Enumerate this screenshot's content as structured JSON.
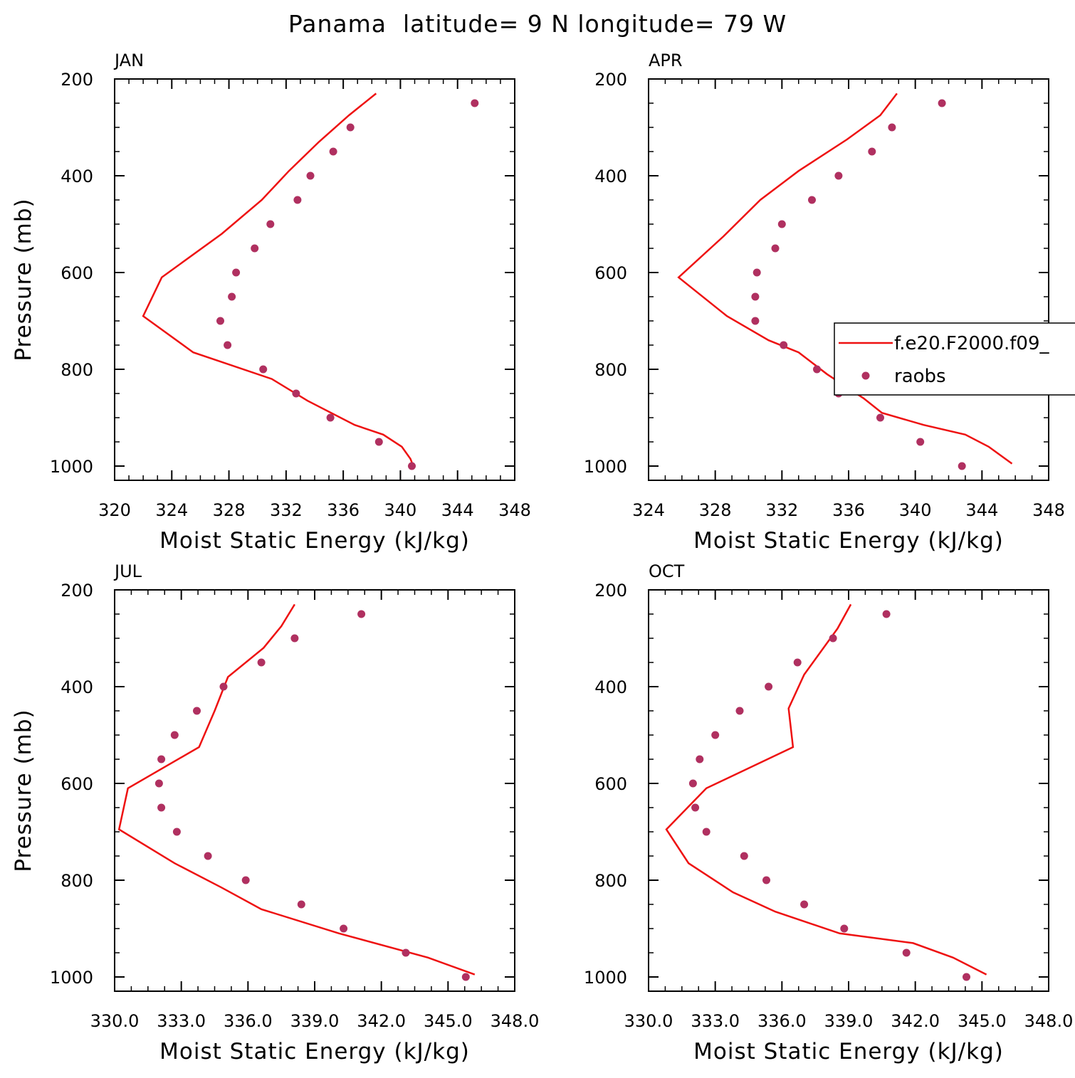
{
  "figure": {
    "title": "Panama  latitude= 9 N longitude= 79 W"
  },
  "colors": {
    "model_line": "#ee1111",
    "obs_marker": "#b03060",
    "axes": "#000000"
  },
  "legend": {
    "entries": [
      {
        "label": "f.e20.F2000.f09_",
        "kind": "line"
      },
      {
        "label": "raobs",
        "kind": "marker"
      }
    ],
    "panel": 1,
    "placement": "center-right"
  },
  "chart_data": [
    {
      "type": "line",
      "title": "JAN",
      "xlabel": "Moist Static Energy (kJ/kg)",
      "ylabel": "Pressure (mb)",
      "xlim": [
        320,
        348
      ],
      "ylim": [
        200,
        1000
      ],
      "x_ticks": [
        "320",
        "324",
        "328",
        "332",
        "336",
        "340",
        "344",
        "348"
      ],
      "y_ticks": [
        "200",
        "400",
        "600",
        "800",
        "1000"
      ],
      "series": [
        {
          "name": "f.e20.F2000.f09_",
          "style": "line",
          "pressure": [
            230,
            275,
            330,
            390,
            450,
            520,
            610,
            690,
            765,
            820,
            865,
            915,
            935,
            960,
            985,
            1000
          ],
          "mse": [
            338.3,
            336.4,
            334.3,
            332.2,
            330.3,
            327.5,
            323.3,
            322.0,
            325.5,
            331.0,
            333.5,
            336.8,
            338.8,
            340.1,
            340.7,
            340.9
          ]
        },
        {
          "name": "raobs",
          "style": "marker",
          "pressure": [
            250,
            300,
            350,
            400,
            450,
            500,
            550,
            600,
            650,
            700,
            750,
            800,
            850,
            900,
            950,
            1000
          ],
          "mse": [
            345.2,
            336.5,
            335.3,
            333.7,
            332.8,
            330.9,
            329.8,
            328.5,
            328.2,
            327.4,
            327.9,
            330.4,
            332.7,
            335.1,
            338.5,
            340.8
          ]
        }
      ]
    },
    {
      "type": "line",
      "title": "APR",
      "xlabel": "Moist Static Energy (kJ/kg)",
      "ylabel": "",
      "xlim": [
        324,
        348
      ],
      "ylim": [
        200,
        1000
      ],
      "x_ticks": [
        "324",
        "328",
        "332",
        "336",
        "340",
        "344",
        "348"
      ],
      "y_ticks": [
        "200",
        "400",
        "600",
        "800",
        "1000"
      ],
      "series": [
        {
          "name": "f.e20.F2000.f09_",
          "style": "line",
          "pressure": [
            230,
            275,
            325,
            390,
            450,
            525,
            610,
            690,
            740,
            765,
            810,
            860,
            890,
            915,
            935,
            960,
            995
          ],
          "mse": [
            338.9,
            337.9,
            335.9,
            333.0,
            330.7,
            328.5,
            325.8,
            328.7,
            331.2,
            333.0,
            334.7,
            336.9,
            338.0,
            340.5,
            343.0,
            344.4,
            345.8
          ]
        },
        {
          "name": "raobs",
          "style": "marker",
          "pressure": [
            250,
            300,
            350,
            400,
            450,
            500,
            550,
            600,
            650,
            700,
            750,
            800,
            850,
            900,
            950,
            1000
          ],
          "mse": [
            341.6,
            338.6,
            337.4,
            335.4,
            333.8,
            332.0,
            331.6,
            330.5,
            330.4,
            330.4,
            332.1,
            334.1,
            335.4,
            337.9,
            340.3,
            342.8
          ]
        }
      ]
    },
    {
      "type": "line",
      "title": "JUL",
      "xlabel": "Moist Static Energy (kJ/kg)",
      "ylabel": "Pressure (mb)",
      "xlim": [
        330,
        348
      ],
      "ylim": [
        200,
        1000
      ],
      "x_ticks": [
        "330.0",
        "333.0",
        "336.0",
        "339.0",
        "342.0",
        "345.0",
        "348.0"
      ],
      "y_ticks": [
        "200",
        "400",
        "600",
        "800",
        "1000"
      ],
      "series": [
        {
          "name": "f.e20.F2000.f09_",
          "style": "line",
          "pressure": [
            230,
            275,
            320,
            380,
            450,
            525,
            610,
            695,
            765,
            815,
            860,
            910,
            960,
            995
          ],
          "mse": [
            338.1,
            337.5,
            336.7,
            335.1,
            334.5,
            333.8,
            330.6,
            330.2,
            332.7,
            334.8,
            336.6,
            340.1,
            344.1,
            346.2
          ]
        },
        {
          "name": "raobs",
          "style": "marker",
          "pressure": [
            250,
            300,
            350,
            400,
            450,
            500,
            550,
            600,
            650,
            700,
            750,
            800,
            850,
            900,
            950,
            1000
          ],
          "mse": [
            341.1,
            338.1,
            336.6,
            334.9,
            333.7,
            332.7,
            332.1,
            332.0,
            332.1,
            332.8,
            334.2,
            335.9,
            338.4,
            340.3,
            343.1,
            345.8
          ]
        }
      ]
    },
    {
      "type": "line",
      "title": "OCT",
      "xlabel": "Moist Static Energy (kJ/kg)",
      "ylabel": "",
      "xlim": [
        330,
        348
      ],
      "ylim": [
        200,
        1000
      ],
      "x_ticks": [
        "330.0",
        "333.0",
        "336.0",
        "339.0",
        "342.0",
        "345.0",
        "348.0"
      ],
      "y_ticks": [
        "200",
        "400",
        "600",
        "800",
        "1000"
      ],
      "series": [
        {
          "name": "f.e20.F2000.f09_",
          "style": "line",
          "pressure": [
            230,
            280,
            375,
            445,
            525,
            610,
            695,
            765,
            825,
            865,
            910,
            930,
            960,
            995
          ],
          "mse": [
            339.1,
            338.5,
            337.0,
            336.3,
            336.5,
            332.6,
            330.8,
            331.8,
            333.8,
            335.7,
            338.6,
            341.9,
            343.7,
            345.2
          ]
        },
        {
          "name": "raobs",
          "style": "marker",
          "pressure": [
            250,
            300,
            350,
            400,
            450,
            500,
            550,
            600,
            650,
            700,
            750,
            800,
            850,
            900,
            950,
            1000
          ],
          "mse": [
            340.7,
            338.3,
            336.7,
            335.4,
            334.1,
            333.0,
            332.3,
            332.0,
            332.1,
            332.6,
            334.3,
            335.3,
            337.0,
            338.8,
            341.6,
            344.3
          ]
        }
      ]
    }
  ]
}
